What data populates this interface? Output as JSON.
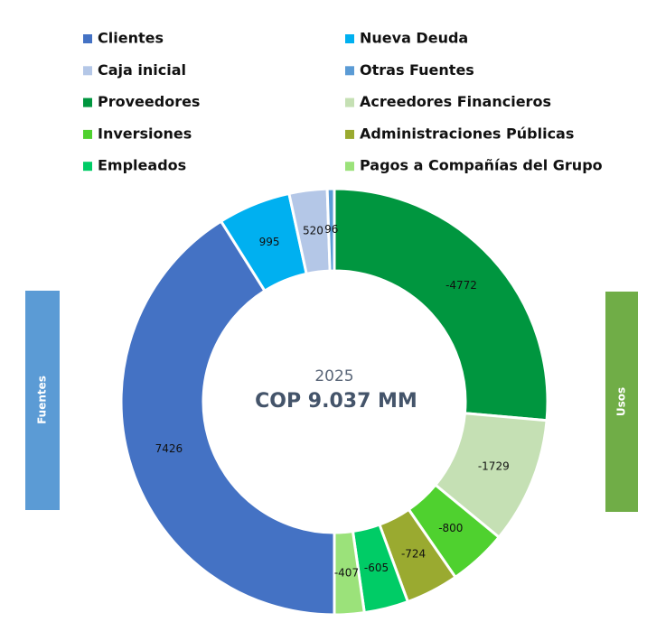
{
  "chart_data": {
    "type": "donut",
    "center_title": "2025",
    "center_subtitle": "COP 9.037 MM",
    "left_banner": "Fuentes",
    "right_banner": "Usos",
    "categories": [
      "Clientes",
      "Nueva Deuda",
      "Caja inicial",
      "Otras Fuentes",
      "Proveedores",
      "Acreedores Financieros",
      "Inversiones",
      "Administraciones Públicas",
      "Empleados",
      "Pagos a Compañías del Grupo"
    ],
    "values": [
      7426,
      995,
      520,
      96,
      -4772,
      -1729,
      -800,
      -724,
      -605,
      -407
    ],
    "colors": [
      "#4472c4",
      "#00b0f0",
      "#b4c7e7",
      "#5b9bd5",
      "#00963f",
      "#c5e0b4",
      "#4fd12f",
      "#9aaa30",
      "#00cc66",
      "#9be27a"
    ],
    "left_banner_color": "#5b9bd5",
    "right_banner_color": "#70ad47"
  }
}
